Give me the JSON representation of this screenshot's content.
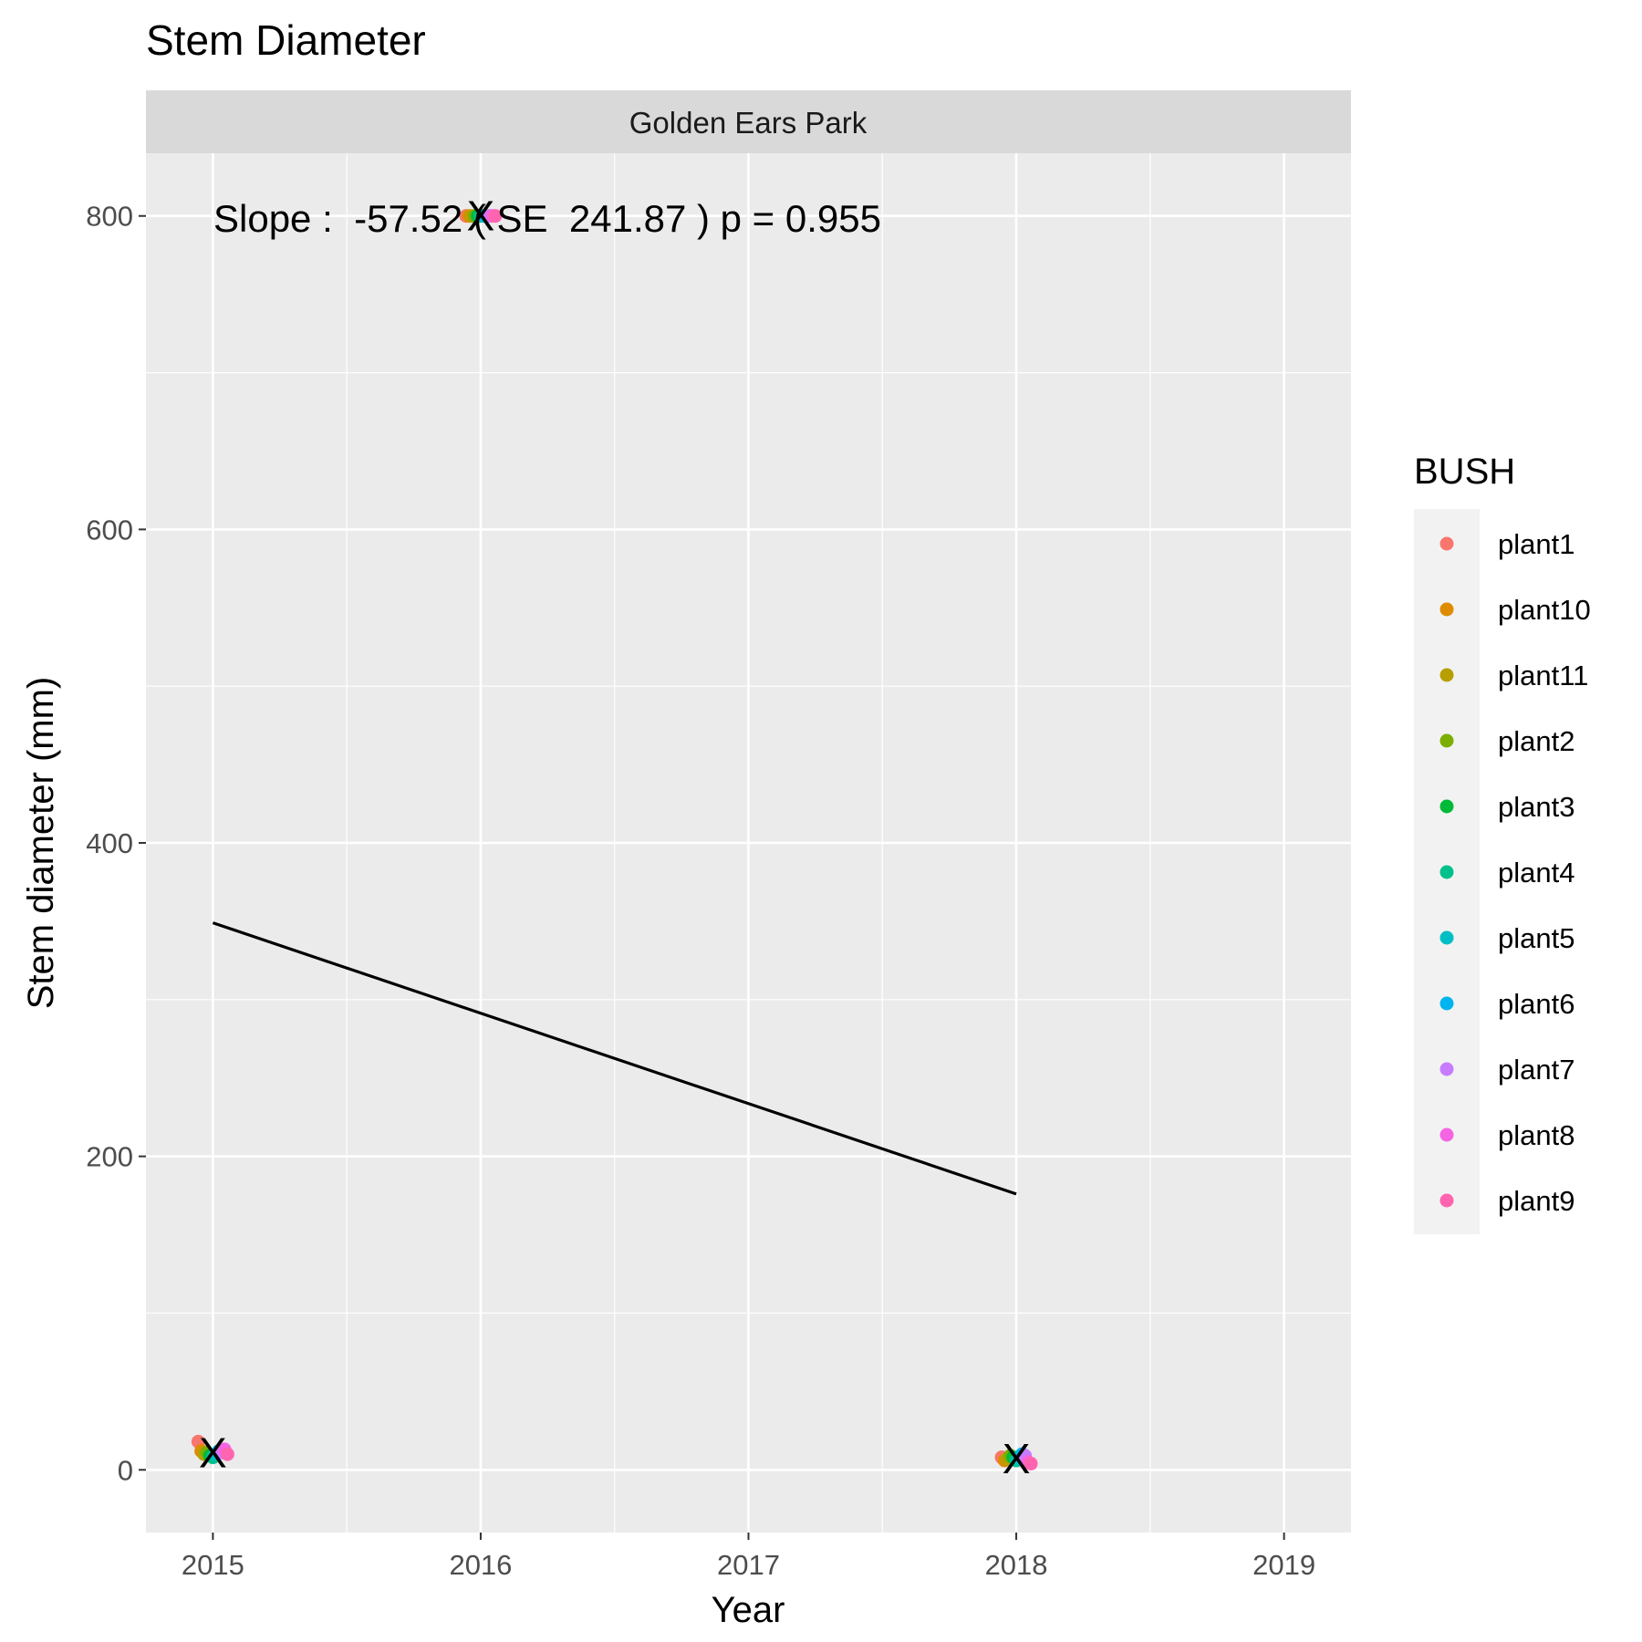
{
  "chart_data": {
    "type": "scatter",
    "title": "Stem Diameter",
    "facet": "Golden Ears Park",
    "xlabel": "Year",
    "ylabel": "Stem diameter (mm)",
    "x_ticks": [
      2015,
      2016,
      2017,
      2018,
      2019
    ],
    "y_ticks": [
      0,
      200,
      400,
      600,
      800
    ],
    "xlim": [
      2014.75,
      2019.25
    ],
    "ylim": [
      -40,
      840
    ],
    "grid": true,
    "legend_title": "BUSH",
    "legend_position": "right",
    "annotation": "Slope :  -57.52 ( SE  241.87 ) p = 0.955",
    "series": [
      {
        "name": "plant1",
        "color": "#F8766D",
        "points": [
          [
            2015,
            18
          ],
          [
            2016,
            800
          ],
          [
            2018,
            8
          ]
        ]
      },
      {
        "name": "plant10",
        "color": "#DE8C00",
        "points": [
          [
            2015,
            12
          ],
          [
            2016,
            800
          ],
          [
            2018,
            6
          ]
        ]
      },
      {
        "name": "plant11",
        "color": "#B79F00",
        "points": [
          [
            2015,
            10
          ],
          [
            2016,
            800
          ],
          [
            2018,
            7
          ]
        ]
      },
      {
        "name": "plant2",
        "color": "#7CAE00",
        "points": [
          [
            2015,
            11
          ],
          [
            2016,
            800
          ],
          [
            2018,
            9
          ]
        ]
      },
      {
        "name": "plant3",
        "color": "#00BA38",
        "points": [
          [
            2015,
            9
          ],
          [
            2016,
            800
          ],
          [
            2018,
            8
          ]
        ]
      },
      {
        "name": "plant4",
        "color": "#00C08B",
        "points": [
          [
            2015,
            8
          ],
          [
            2016,
            800
          ],
          [
            2018,
            6
          ]
        ]
      },
      {
        "name": "plant5",
        "color": "#00BFC4",
        "points": [
          [
            2015,
            10
          ],
          [
            2016,
            800
          ],
          [
            2018,
            7
          ]
        ]
      },
      {
        "name": "plant6",
        "color": "#00B4F0",
        "points": [
          [
            2015,
            12
          ],
          [
            2016,
            800
          ],
          [
            2018,
            10
          ]
        ]
      },
      {
        "name": "plant7",
        "color": "#C77CFF",
        "points": [
          [
            2015,
            11
          ],
          [
            2016,
            800
          ],
          [
            2018,
            9
          ]
        ]
      },
      {
        "name": "plant8",
        "color": "#F564E3",
        "points": [
          [
            2015,
            13
          ],
          [
            2016,
            800
          ],
          [
            2018,
            5
          ]
        ]
      },
      {
        "name": "plant9",
        "color": "#FF64B0",
        "points": [
          [
            2015,
            10
          ],
          [
            2016,
            800
          ],
          [
            2018,
            4
          ]
        ]
      }
    ],
    "mean_markers": [
      [
        2015,
        11
      ],
      [
        2016,
        800
      ],
      [
        2018,
        7
      ]
    ],
    "mean_marker_symbol": "X",
    "trend_line": [
      [
        2015,
        349
      ],
      [
        2018,
        176
      ]
    ]
  }
}
